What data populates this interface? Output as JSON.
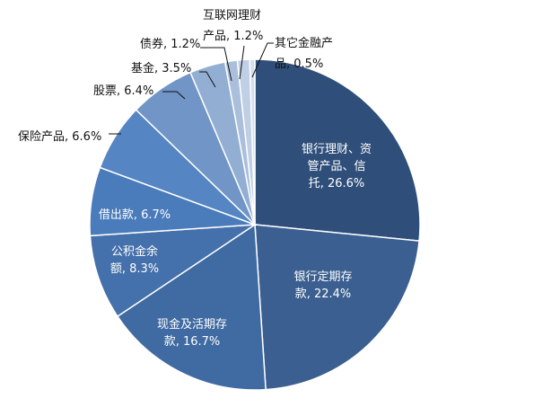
{
  "chart_data": {
    "type": "pie",
    "title": "",
    "slices": [
      {
        "name": "银行理财、资管产品、信托",
        "value": 26.6,
        "label_lines": [
          "银行理财、资",
          "管产品、信",
          "托, 26.6%"
        ],
        "label_placement": "inside",
        "color": "#2f4f7a"
      },
      {
        "name": "银行定期存款",
        "value": 22.4,
        "label_lines": [
          "银行定期存",
          "款, 22.4%"
        ],
        "label_placement": "inside",
        "color": "#3a5f90"
      },
      {
        "name": "现金及活期存款",
        "value": 16.7,
        "label_lines": [
          "现金及活期存",
          "款, 16.7%"
        ],
        "label_placement": "inside",
        "color": "#3f6aa2"
      },
      {
        "name": "公积金余额",
        "value": 8.3,
        "label_lines": [
          "公积金余",
          "额, 8.3%"
        ],
        "label_placement": "inside",
        "color": "#4470ab"
      },
      {
        "name": "借出款",
        "value": 6.7,
        "label_lines": [
          "借出款, 6.7%"
        ],
        "label_placement": "inside",
        "color": "#4a7bba"
      },
      {
        "name": "保险产品",
        "value": 6.6,
        "label_lines": [
          "保险产品, 6.6%"
        ],
        "label_placement": "outside",
        "color": "#5585c2"
      },
      {
        "name": "股票",
        "value": 6.4,
        "label_lines": [
          "股票, 6.4%"
        ],
        "label_placement": "outside",
        "color": "#7095c6"
      },
      {
        "name": "基金",
        "value": 3.5,
        "label_lines": [
          "基金, 3.5%"
        ],
        "label_placement": "outside",
        "color": "#93aed3"
      },
      {
        "name": "债券",
        "value": 1.2,
        "label_lines": [
          "债券, 1.2%"
        ],
        "label_placement": "outside",
        "color": "#aabfdc"
      },
      {
        "name": "互联网理财产品",
        "value": 1.2,
        "label_lines": [
          "互联网理财",
          "产品, 1.2%"
        ],
        "label_placement": "outside",
        "color": "#bfcfe5"
      },
      {
        "name": "其它金融产品",
        "value": 0.5,
        "label_lines": [
          "其它金融产",
          "品, 0.5%"
        ],
        "label_placement": "outside",
        "color": "#d3deee"
      }
    ],
    "start_angle": "12 o'clock",
    "direction": "clockwise",
    "legend": "none"
  }
}
